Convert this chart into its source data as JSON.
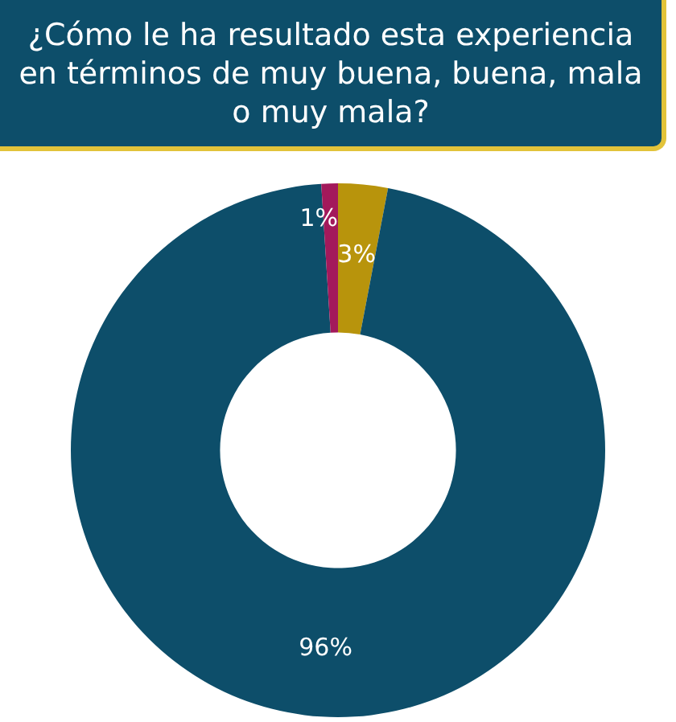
{
  "chart_data": {
    "type": "donut",
    "title": "¿Cómo le ha resultado esta experiencia en términos de muy buena, buena, mala o muy mala?",
    "categories": [
      null,
      null,
      null
    ],
    "values": [
      3,
      96,
      1
    ],
    "colors": [
      "#b8940c",
      "#0d4e6a",
      "#a3195b"
    ],
    "value_labels": [
      "3%",
      "96%",
      "1%"
    ]
  }
}
